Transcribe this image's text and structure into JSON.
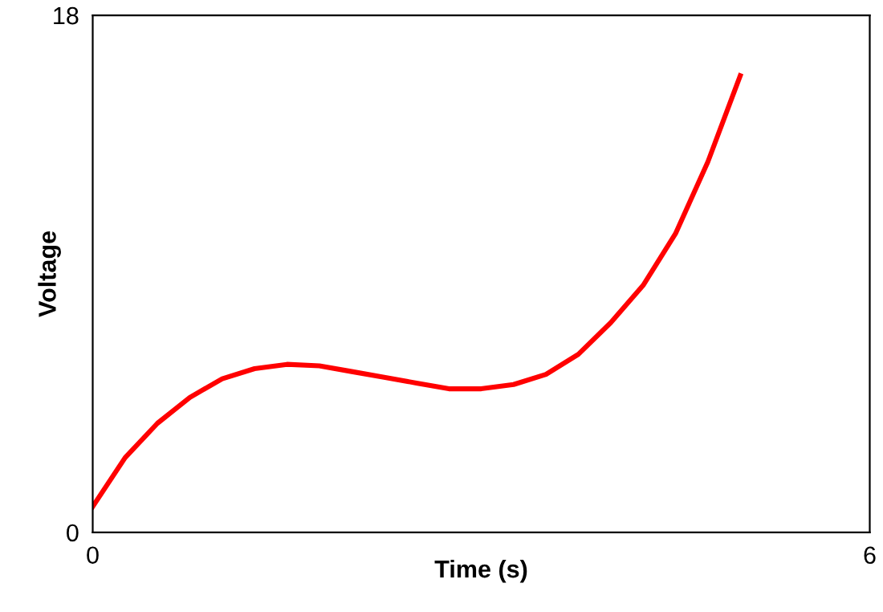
{
  "chart_data": {
    "type": "line",
    "xlabel": "Time (s)",
    "ylabel": "Voltage",
    "xlim": [
      0,
      6
    ],
    "ylim": [
      0,
      18
    ],
    "xticks": [
      0,
      6
    ],
    "yticks": [
      0,
      18
    ],
    "grid": false,
    "legend": false,
    "marker": "none",
    "line_style": "solid",
    "series": [
      {
        "color": "#ff0000",
        "x": [
          0,
          0.25,
          0.5,
          0.75,
          1.0,
          1.25,
          1.5,
          1.75,
          2.0,
          2.25,
          2.5,
          2.75,
          3.0,
          3.25,
          3.5,
          3.75,
          4.0,
          4.25,
          4.5,
          4.75,
          5.0
        ],
        "values": [
          0.9,
          2.6,
          3.8,
          4.7,
          5.35,
          5.7,
          5.85,
          5.8,
          5.6,
          5.4,
          5.2,
          5.0,
          5.0,
          5.15,
          5.5,
          6.2,
          7.3,
          8.6,
          10.4,
          12.9,
          15.9
        ]
      }
    ]
  }
}
